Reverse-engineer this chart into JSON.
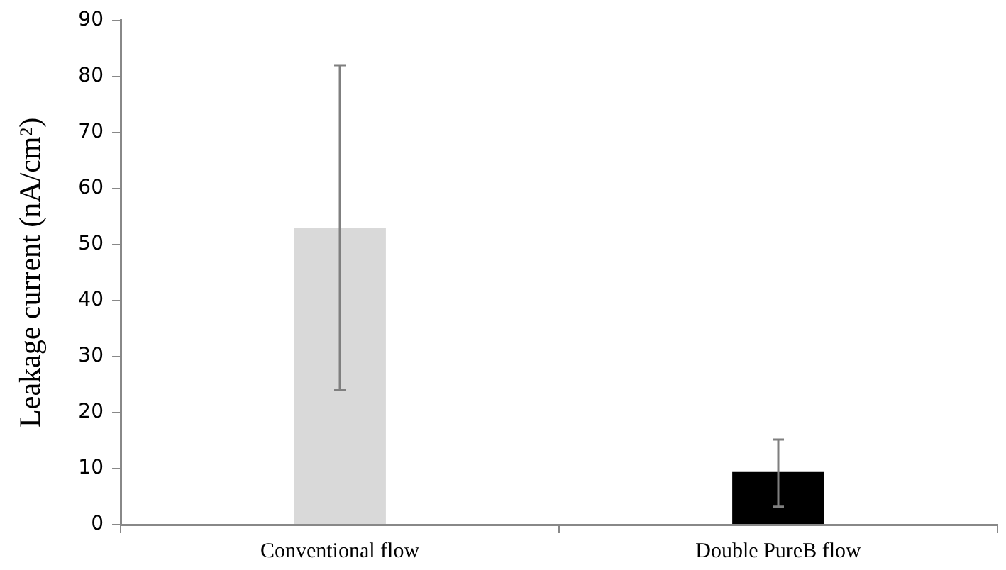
{
  "chart_data": {
    "type": "bar",
    "ylabel": "Leakage current (nA/cm²)",
    "categories": [
      "Conventional flow",
      "Double PureB flow"
    ],
    "values": [
      53,
      9.4
    ],
    "colors": [
      "#d9d9d9",
      "#000000"
    ],
    "errors": [
      [
        24,
        82
      ],
      [
        3.2,
        15.2
      ]
    ],
    "ylim": [
      0,
      90
    ],
    "yticks": [
      0,
      10,
      20,
      30,
      40,
      50,
      60,
      70,
      80,
      90
    ],
    "grid": false,
    "legend": false
  }
}
